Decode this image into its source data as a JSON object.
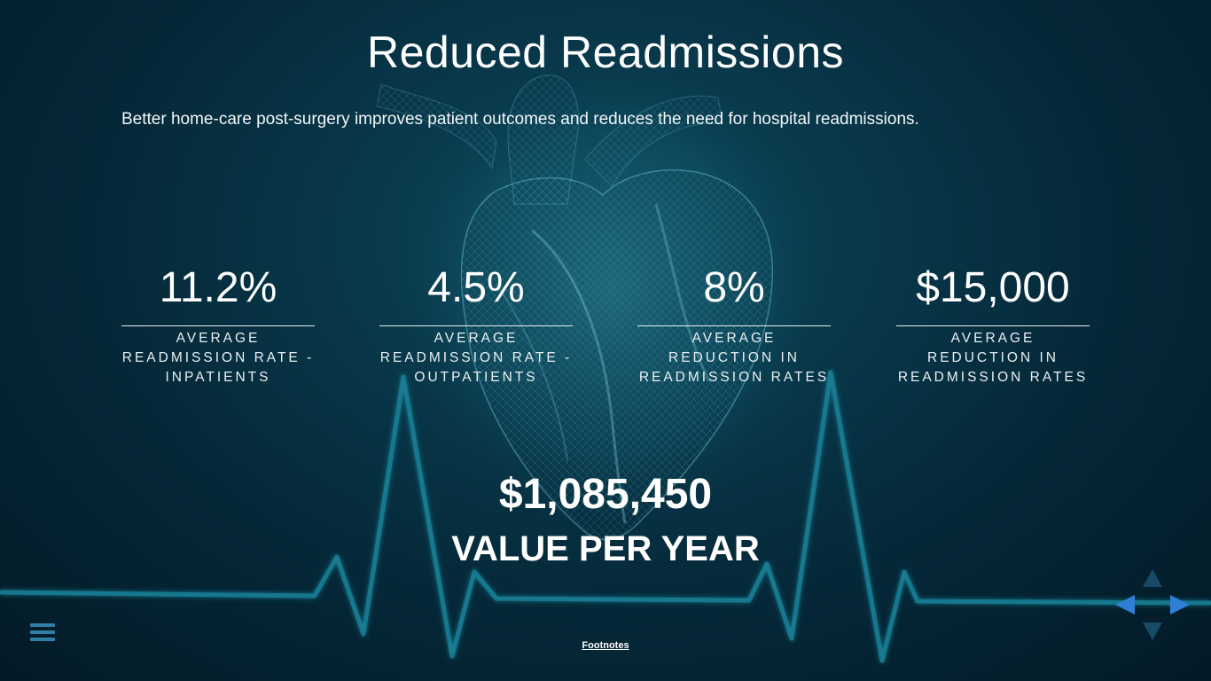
{
  "header": {
    "title": "Reduced Readmissions",
    "subtitle": "Better home-care post-surgery improves patient outcomes and reduces the need for hospital readmissions."
  },
  "stats": [
    {
      "value": "11.2%",
      "label": "AVERAGE READMISSION RATE - INPATIENTS"
    },
    {
      "value": "4.5%",
      "label": "AVERAGE READMISSION RATE - OUTPATIENTS"
    },
    {
      "value": "8%",
      "label": "AVERAGE REDUCTION IN READMISSION RATES"
    },
    {
      "value": "$15,000",
      "label": "AVERAGE REDUCTION IN READMISSION RATES"
    }
  ],
  "total": {
    "value": "$1,085,450",
    "label": "VALUE PER YEAR"
  },
  "footer": {
    "footnotes_label": "Footnotes",
    "menu_icon": "hamburger-menu-icon",
    "nav_icons": [
      "arrow-up-icon",
      "arrow-left-icon",
      "arrow-right-icon",
      "arrow-down-icon"
    ]
  },
  "colors": {
    "background": "#052838",
    "ecg_line": "#1a7f95",
    "heart_wireframe": "#5fc2d2",
    "nav_active": "#2f7fd6",
    "nav_inactive": "#174a66"
  }
}
